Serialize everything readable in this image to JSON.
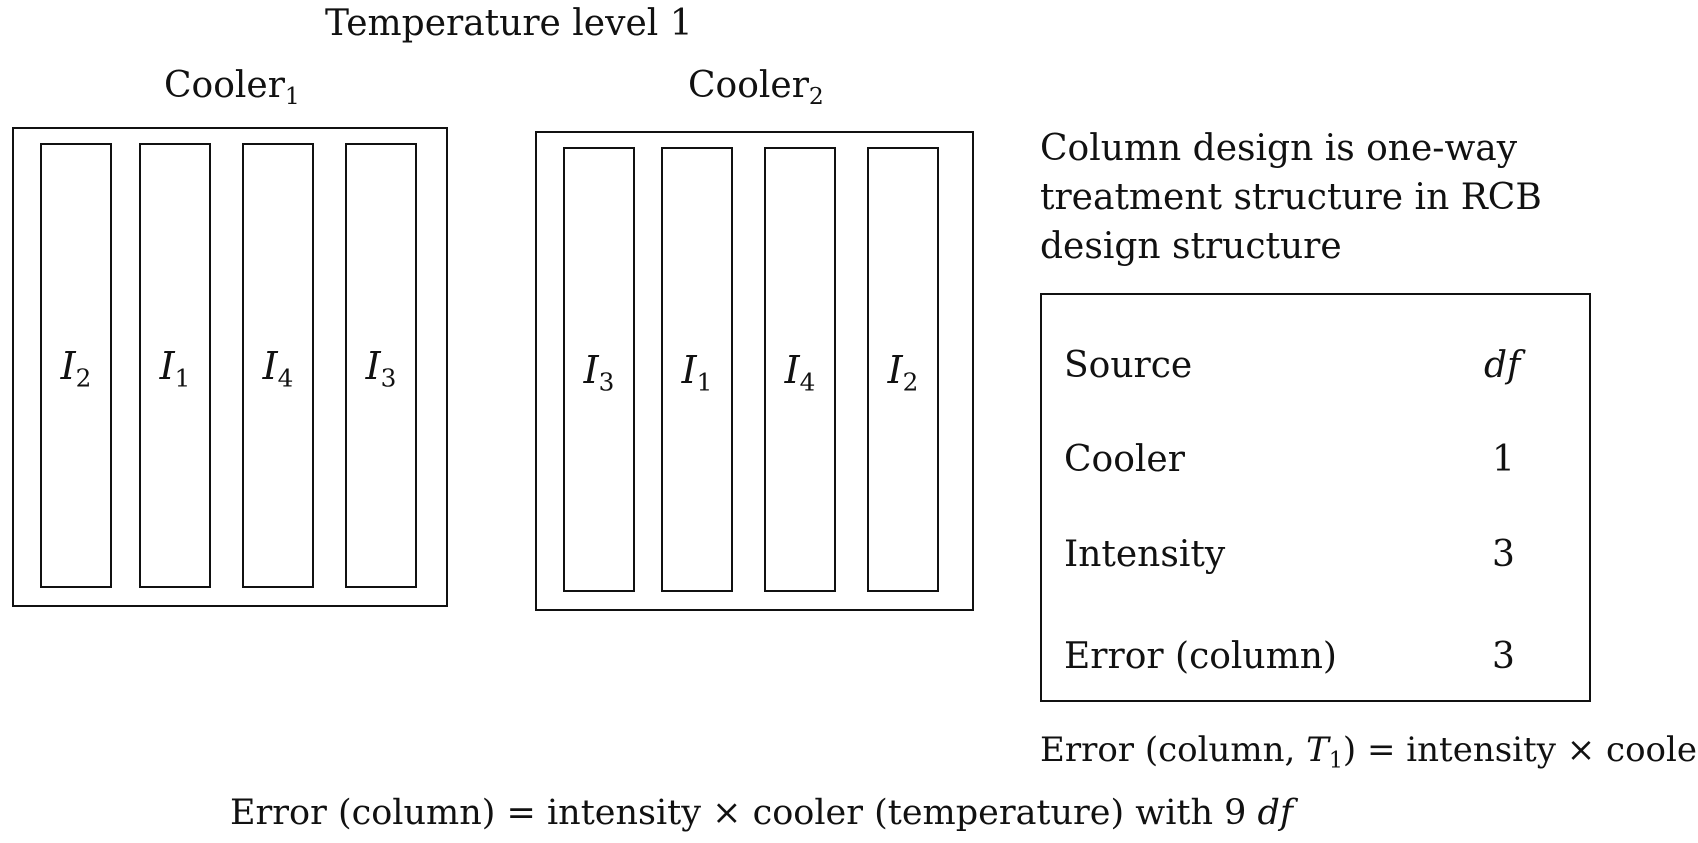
{
  "title": "Temperature level 1",
  "coolers": [
    {
      "name": "Cooler",
      "subscript": "1",
      "strips": [
        {
          "letter": "I",
          "sub": "2"
        },
        {
          "letter": "I",
          "sub": "1"
        },
        {
          "letter": "I",
          "sub": "4"
        },
        {
          "letter": "I",
          "sub": "3"
        }
      ]
    },
    {
      "name": "Cooler",
      "subscript": "2",
      "strips": [
        {
          "letter": "I",
          "sub": "3"
        },
        {
          "letter": "I",
          "sub": "1"
        },
        {
          "letter": "I",
          "sub": "4"
        },
        {
          "letter": "I",
          "sub": "2"
        }
      ]
    }
  ],
  "description": {
    "line1": "Column design is one-way",
    "line2": "treatment structure in RCB",
    "line3": "design structure"
  },
  "anova": {
    "header": {
      "source": "Source",
      "df": "df"
    },
    "rows": [
      {
        "source": "Cooler",
        "df": "1"
      },
      {
        "source": "Intensity",
        "df": "3"
      },
      {
        "source": "Error (column)",
        "df": "3"
      }
    ]
  },
  "note1": {
    "prefix": "Error (column, ",
    "var": "T",
    "sub": "1",
    "suffix": ") = intensity × cooler"
  },
  "note2": {
    "prefix": "Error (column) = intensity × cooler (temperature) with 9 ",
    "df": "df"
  }
}
